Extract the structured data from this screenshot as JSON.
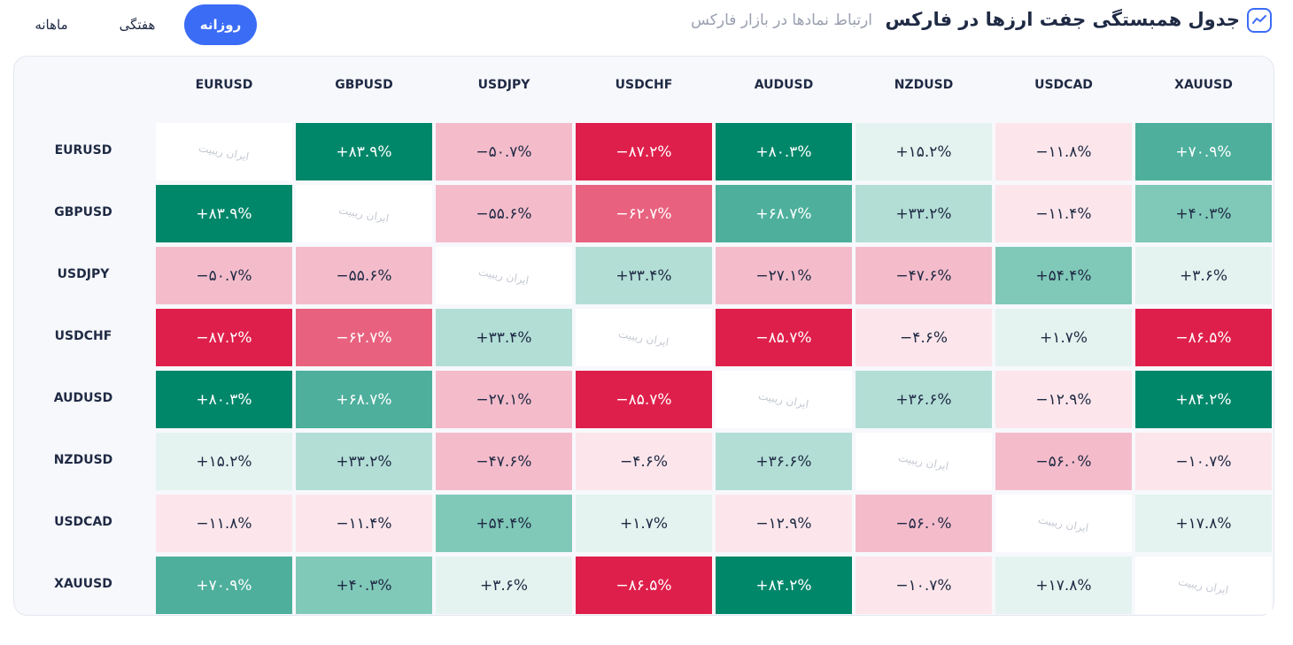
{
  "header": {
    "title": "جدول همبستگی جفت ارزها در فارکس",
    "subtitle": "ارتباط نمادها در بازار فارکس"
  },
  "tabs": {
    "items": [
      "روزانه",
      "هفتگی",
      "ماهانه"
    ],
    "active": 0
  },
  "table": {
    "columns": [
      "EURUSD",
      "GBPUSD",
      "USDJPY",
      "USDCHF",
      "AUDUSD",
      "NZDUSD",
      "USDCAD",
      "XAUUSD"
    ],
    "rows": [
      {
        "label": "EURUSD",
        "cells": [
          [
            "ایران ریبیت",
            "#ffffff",
            "#c5c9d3"
          ],
          [
            "+۸۳.۹%",
            "#00876a",
            "#ffffff"
          ],
          [
            "−۵۰.۷%",
            "#f4bccb",
            "#1f2a44"
          ],
          [
            "−۸۷.۲%",
            "#df1f4b",
            "#ffffff"
          ],
          [
            "+۸۰.۳%",
            "#00876a",
            "#ffffff"
          ],
          [
            "+۱۵.۲%",
            "#e4f3ef",
            "#1f2a44"
          ],
          [
            "−۱۱.۸%",
            "#fce6eb",
            "#1f2a44"
          ],
          [
            "+۷۰.۹%",
            "#4daf9c",
            "#ffffff"
          ]
        ]
      },
      {
        "label": "GBPUSD",
        "cells": [
          [
            "+۸۳.۹%",
            "#00876a",
            "#ffffff"
          ],
          [
            "ایران ریبیت",
            "#ffffff",
            "#c5c9d3"
          ],
          [
            "−۵۵.۶%",
            "#f4bccb",
            "#1f2a44"
          ],
          [
            "−۶۲.۷%",
            "#e8627f",
            "#ffffff"
          ],
          [
            "+۶۸.۷%",
            "#4daf9c",
            "#ffffff"
          ],
          [
            "+۳۳.۲%",
            "#b3ded6",
            "#1f2a44"
          ],
          [
            "−۱۱.۴%",
            "#fce6eb",
            "#1f2a44"
          ],
          [
            "+۴۰.۳%",
            "#80c9b9",
            "#1f2a44"
          ]
        ]
      },
      {
        "label": "USDJPY",
        "cells": [
          [
            "−۵۰.۷%",
            "#f4bccb",
            "#1f2a44"
          ],
          [
            "−۵۵.۶%",
            "#f4bccb",
            "#1f2a44"
          ],
          [
            "ایران ریبیت",
            "#ffffff",
            "#c5c9d3"
          ],
          [
            "+۳۳.۴%",
            "#b3ded6",
            "#1f2a44"
          ],
          [
            "−۲۷.۱%",
            "#f4bccb",
            "#1f2a44"
          ],
          [
            "−۴۷.۶%",
            "#f4bccb",
            "#1f2a44"
          ],
          [
            "+۵۴.۴%",
            "#80c9b9",
            "#1f2a44"
          ],
          [
            "+۳.۶%",
            "#e4f3ef",
            "#1f2a44"
          ]
        ]
      },
      {
        "label": "USDCHF",
        "cells": [
          [
            "−۸۷.۲%",
            "#df1f4b",
            "#ffffff"
          ],
          [
            "−۶۲.۷%",
            "#e8627f",
            "#ffffff"
          ],
          [
            "+۳۳.۴%",
            "#b3ded6",
            "#1f2a44"
          ],
          [
            "ایران ریبیت",
            "#ffffff",
            "#c5c9d3"
          ],
          [
            "−۸۵.۷%",
            "#df1f4b",
            "#ffffff"
          ],
          [
            "−۴.۶%",
            "#fce6eb",
            "#1f2a44"
          ],
          [
            "+۱.۷%",
            "#e4f3ef",
            "#1f2a44"
          ],
          [
            "−۸۶.۵%",
            "#df1f4b",
            "#ffffff"
          ]
        ]
      },
      {
        "label": "AUDUSD",
        "cells": [
          [
            "+۸۰.۳%",
            "#00876a",
            "#ffffff"
          ],
          [
            "+۶۸.۷%",
            "#4daf9c",
            "#ffffff"
          ],
          [
            "−۲۷.۱%",
            "#f4bccb",
            "#1f2a44"
          ],
          [
            "−۸۵.۷%",
            "#df1f4b",
            "#ffffff"
          ],
          [
            "ایران ریبیت",
            "#ffffff",
            "#c5c9d3"
          ],
          [
            "+۳۶.۶%",
            "#b3ded6",
            "#1f2a44"
          ],
          [
            "−۱۲.۹%",
            "#fce6eb",
            "#1f2a44"
          ],
          [
            "+۸۴.۲%",
            "#00876a",
            "#ffffff"
          ]
        ]
      },
      {
        "label": "NZDUSD",
        "cells": [
          [
            "+۱۵.۲%",
            "#e4f3ef",
            "#1f2a44"
          ],
          [
            "+۳۳.۲%",
            "#b3ded6",
            "#1f2a44"
          ],
          [
            "−۴۷.۶%",
            "#f4bccb",
            "#1f2a44"
          ],
          [
            "−۴.۶%",
            "#fce6eb",
            "#1f2a44"
          ],
          [
            "+۳۶.۶%",
            "#b3ded6",
            "#1f2a44"
          ],
          [
            "ایران ریبیت",
            "#ffffff",
            "#c5c9d3"
          ],
          [
            "−۵۶.۰%",
            "#f4bccb",
            "#1f2a44"
          ],
          [
            "−۱۰.۷%",
            "#fce6eb",
            "#1f2a44"
          ]
        ]
      },
      {
        "label": "USDCAD",
        "cells": [
          [
            "−۱۱.۸%",
            "#fce6eb",
            "#1f2a44"
          ],
          [
            "−۱۱.۴%",
            "#fce6eb",
            "#1f2a44"
          ],
          [
            "+۵۴.۴%",
            "#80c9b9",
            "#1f2a44"
          ],
          [
            "+۱.۷%",
            "#e4f3ef",
            "#1f2a44"
          ],
          [
            "−۱۲.۹%",
            "#fce6eb",
            "#1f2a44"
          ],
          [
            "−۵۶.۰%",
            "#f4bccb",
            "#1f2a44"
          ],
          [
            "ایران ریبیت",
            "#ffffff",
            "#c5c9d3"
          ],
          [
            "+۱۷.۸%",
            "#e4f3ef",
            "#1f2a44"
          ]
        ]
      },
      {
        "label": "XAUUSD",
        "cells": [
          [
            "+۷۰.۹%",
            "#4daf9c",
            "#ffffff"
          ],
          [
            "+۴۰.۳%",
            "#80c9b9",
            "#1f2a44"
          ],
          [
            "+۳.۶%",
            "#e4f3ef",
            "#1f2a44"
          ],
          [
            "−۸۶.۵%",
            "#df1f4b",
            "#ffffff"
          ],
          [
            "+۸۴.۲%",
            "#00876a",
            "#ffffff"
          ],
          [
            "−۱۰.۷%",
            "#fce6eb",
            "#1f2a44"
          ],
          [
            "+۱۷.۸%",
            "#e4f3ef",
            "#1f2a44"
          ],
          [
            "ایران ریبیت",
            "#ffffff",
            "#c5c9d3"
          ]
        ]
      }
    ]
  }
}
